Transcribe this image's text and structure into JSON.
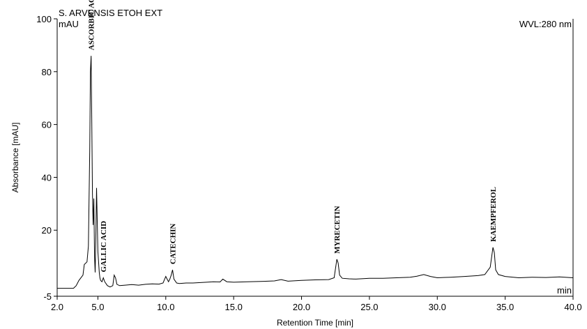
{
  "chart_data": {
    "type": "line",
    "title": "S. ARVENSIS ETOH EXT",
    "wavelength_label": "WVL:280 nm",
    "y_unit_label": "mAU",
    "x_unit_label": "min",
    "xlabel": "Retention Time [min]",
    "ylabel": "Absorbance [mAU]",
    "xlim": [
      2.0,
      40.0
    ],
    "ylim": [
      -5,
      100
    ],
    "x_ticks": [
      "2.0",
      "5.0",
      "10.0",
      "15.0",
      "20.0",
      "25.0",
      "30.0",
      "35.0",
      "40.0"
    ],
    "y_ticks": [
      "-5",
      "20",
      "40",
      "60",
      "80",
      "100"
    ],
    "grid": false,
    "series": [
      {
        "color": "#000000",
        "x": [
          2.0,
          3.2,
          3.4,
          3.6,
          3.9,
          4.0,
          4.2,
          4.3,
          4.4,
          4.45,
          4.5,
          4.55,
          4.6,
          4.65,
          4.7,
          4.75,
          4.8,
          4.85,
          4.9,
          5.0,
          5.1,
          5.15,
          5.2,
          5.3,
          5.4,
          5.5,
          5.7,
          5.9,
          6.1,
          6.2,
          6.3,
          6.4,
          6.6,
          7.0,
          7.5,
          8.0,
          8.5,
          9.0,
          9.5,
          9.8,
          10.0,
          10.1,
          10.2,
          10.3,
          10.4,
          10.5,
          10.6,
          10.8,
          11.0,
          11.5,
          12.0,
          13.0,
          13.5,
          14.0,
          14.2,
          14.5,
          15.0,
          16.0,
          17.0,
          18.0,
          18.5,
          19.0,
          20.0,
          21.0,
          22.0,
          22.4,
          22.6,
          22.7,
          22.8,
          23.0,
          23.5,
          24.0,
          25.0,
          26.0,
          27.0,
          28.0,
          28.5,
          29.0,
          29.5,
          30.0,
          31.0,
          32.0,
          33.0,
          33.5,
          33.9,
          34.1,
          34.2,
          34.3,
          34.5,
          35.0,
          36.0,
          37.0,
          38.0,
          39.0,
          40.0
        ],
        "y": [
          -2.0,
          -2.0,
          -1.0,
          1.0,
          3.0,
          7.0,
          8.0,
          14.0,
          50.0,
          80.0,
          86.0,
          60.0,
          34.0,
          22.0,
          32.0,
          10.0,
          4.0,
          18.0,
          36.0,
          12.0,
          4.0,
          2.0,
          1.0,
          0.5,
          2.0,
          0.5,
          -1.0,
          -1.5,
          -1.0,
          3.0,
          2.0,
          -0.5,
          -1.0,
          -0.8,
          -0.6,
          -0.8,
          -0.5,
          -0.3,
          -0.4,
          0.0,
          2.5,
          1.5,
          0.5,
          1.5,
          3.0,
          5.0,
          1.5,
          0.0,
          -0.2,
          0.0,
          0.0,
          0.3,
          0.5,
          0.4,
          1.5,
          0.5,
          0.3,
          0.5,
          0.6,
          0.8,
          1.3,
          0.7,
          1.0,
          1.2,
          1.3,
          2.0,
          9.0,
          7.5,
          3.0,
          1.8,
          1.6,
          1.5,
          1.8,
          1.8,
          2.0,
          2.2,
          2.6,
          3.2,
          2.5,
          2.0,
          2.2,
          2.5,
          2.8,
          3.2,
          6.0,
          13.5,
          11.5,
          5.0,
          3.2,
          2.5,
          2.0,
          2.2,
          2.1,
          2.3,
          2.0
        ]
      }
    ],
    "annotations": [
      {
        "text": "ASCORBIC ACID",
        "x": 4.5
      },
      {
        "text": "GALLIC ACID",
        "x": 5.4
      },
      {
        "text": "CATECHIN",
        "x": 10.5
      },
      {
        "text": "MYRECETIN",
        "x": 22.6
      },
      {
        "text": "KAEMPFEROL",
        "x": 34.1
      }
    ]
  }
}
